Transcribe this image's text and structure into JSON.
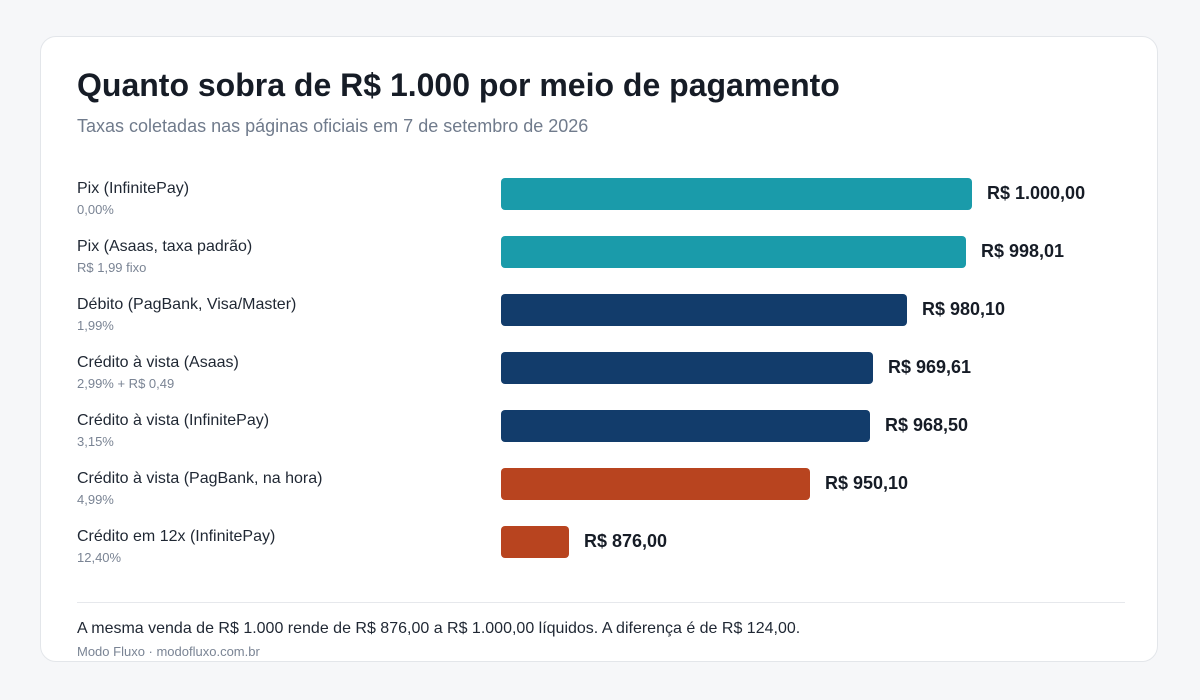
{
  "chart_data": {
    "type": "bar",
    "orientation": "horizontal",
    "title": "Quanto sobra de R$ 1.000 por meio de pagamento",
    "subtitle": "Taxas coletadas nas páginas oficiais em 7 de setembro de 2026",
    "xlim": [
      870,
      1000
    ],
    "grid": false,
    "legend": "none",
    "categories": [
      "Pix (InfinitePay)",
      "Pix (Asaas, taxa padrão)",
      "Débito (PagBank, Visa/Master)",
      "Crédito à vista (Asaas)",
      "Crédito à vista (InfinitePay)",
      "Crédito à vista (PagBank, na hora)",
      "Crédito em 12x (InfinitePay)"
    ],
    "fees": [
      "0,00%",
      "R$ 1,99 fixo",
      "1,99%",
      "2,99% + R$ 0,49",
      "3,15%",
      "4,99%",
      "12,40%"
    ],
    "values": [
      1000.0,
      998.01,
      980.1,
      969.61,
      968.5,
      950.1,
      876.0
    ],
    "value_labels": [
      "R$ 1.000,00",
      "R$ 998,01",
      "R$ 980,10",
      "R$ 969,61",
      "R$ 968,50",
      "R$ 950,10",
      "R$ 876,00"
    ],
    "bar_colors": [
      "#1a9baa",
      "#1a9baa",
      "#123c6b",
      "#123c6b",
      "#123c6b",
      "#b8441f",
      "#b8441f"
    ]
  },
  "footnote": "A mesma venda de R$ 1.000 rende de R$ 876,00 a R$ 1.000,00 líquidos. A diferença é de R$ 124,00.",
  "source": "Modo Fluxo · modofluxo.com.br"
}
